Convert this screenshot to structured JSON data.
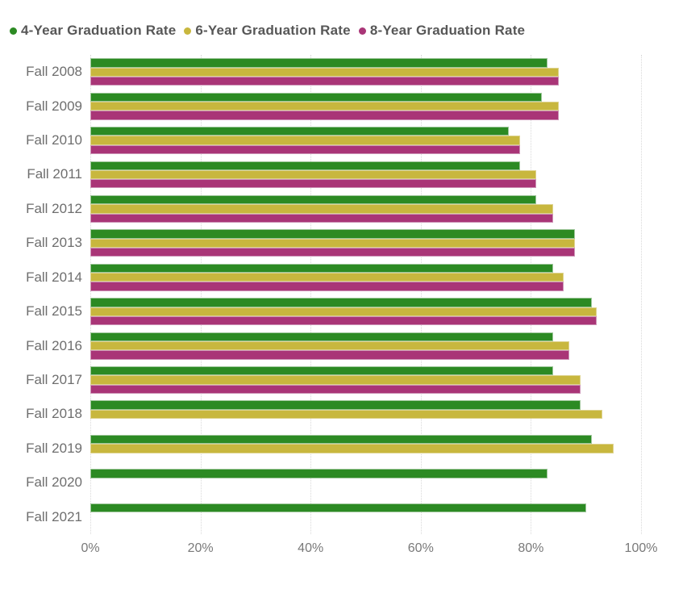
{
  "legend": {
    "position": "top",
    "items": [
      {
        "label": "4-Year Graduation Rate",
        "color": "#2c8a23",
        "border": "#9cc598"
      },
      {
        "label": "6-Year Graduation Rate",
        "color": "#c8b73e",
        "border": "#ddd28d"
      },
      {
        "label": "8-Year Graduation Rate",
        "color": "#a93577",
        "border": "#cc93b6"
      }
    ]
  },
  "chart_data": {
    "type": "bar",
    "orientation": "horizontal",
    "title": "",
    "xlabel": "",
    "ylabel": "",
    "categories": [
      "Fall 2008",
      "Fall 2009",
      "Fall 2010",
      "Fall 2011",
      "Fall 2012",
      "Fall 2013",
      "Fall 2014",
      "Fall 2015",
      "Fall 2016",
      "Fall 2017",
      "Fall 2018",
      "Fall 2019",
      "Fall 2020",
      "Fall 2021"
    ],
    "series": [
      {
        "name": "4-Year Graduation Rate",
        "color": "#2c8a23",
        "border": "#9cc598",
        "values": [
          83,
          82,
          76,
          78,
          81,
          88,
          84,
          91,
          84,
          84,
          89,
          91,
          83,
          90
        ]
      },
      {
        "name": "6-Year Graduation Rate",
        "color": "#c8b73e",
        "border": "#ddd28d",
        "values": [
          85,
          85,
          78,
          81,
          84,
          88,
          86,
          92,
          87,
          89,
          93,
          95,
          null,
          null
        ]
      },
      {
        "name": "8-Year Graduation Rate",
        "color": "#a93577",
        "border": "#cc93b6",
        "values": [
          85,
          85,
          78,
          81,
          84,
          88,
          86,
          92,
          87,
          89,
          null,
          null,
          null,
          null
        ]
      }
    ],
    "xlim": [
      0,
      100
    ],
    "x_tick_values": [
      0,
      20,
      40,
      60,
      80,
      100
    ],
    "x_tick_labels": [
      "0%",
      "20%",
      "40%",
      "60%",
      "80%",
      "100%"
    ],
    "grid": "vertical-dotted",
    "legend_position": "top",
    "value_format": "percent"
  }
}
